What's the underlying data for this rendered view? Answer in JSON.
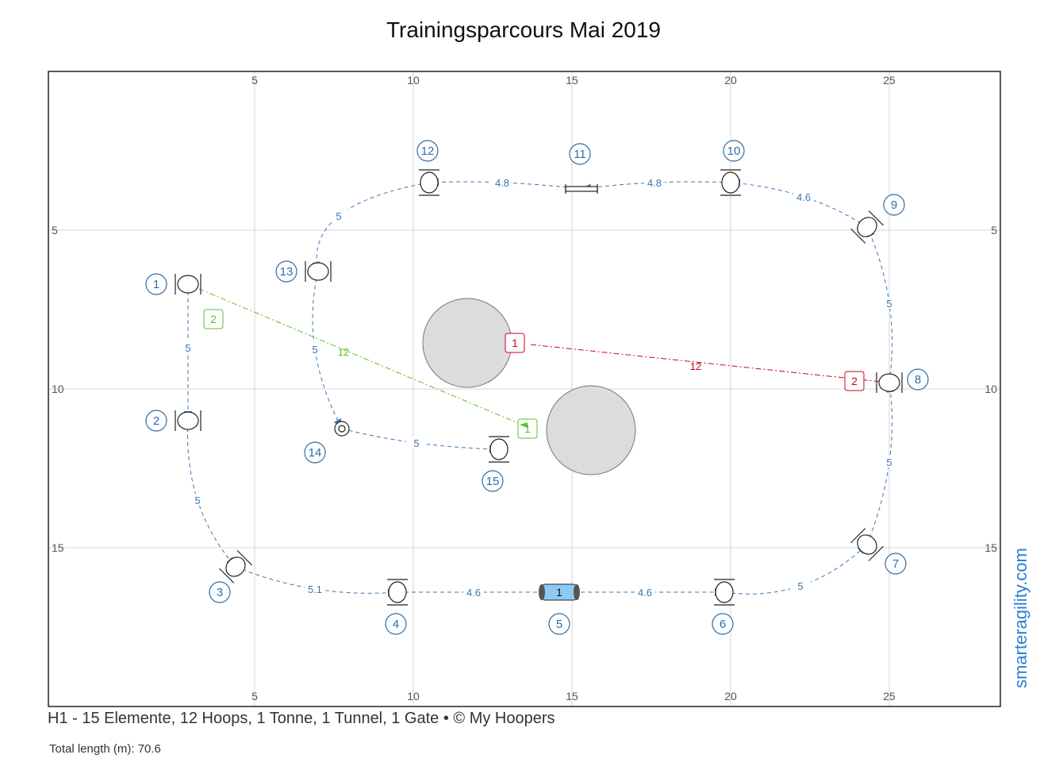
{
  "title": "Trainingsparcours Mai 2019",
  "subtitle": "H1 - 15 Elemente, 12 Hoops, 1 Tonne, 1 Tunnel, 1 Gate • © My Hoopers",
  "total_length": "Total length (m): 70.6",
  "brand": "smarteragility.com",
  "colors": {
    "path": "#3a78b5",
    "label": "#2d6ea8",
    "green": "#5cbf2a",
    "red": "#d0021b",
    "obstacle_fill": "#dcdcdc",
    "tunnel_fill": "#8ec9f5",
    "grid": "#d6d6d6"
  },
  "chart_data": {
    "type": "course-map",
    "xlim": [
      -1.5,
      28.5
    ],
    "ylim": [
      0,
      20
    ],
    "x_ticks": [
      "5",
      "10",
      "15",
      "20",
      "25"
    ],
    "y_ticks": [
      "5",
      "10",
      "15"
    ],
    "grid": true,
    "elements": [
      {
        "num": "1",
        "type": "hoop",
        "x": 2.9,
        "y": 6.7,
        "rot": 0
      },
      {
        "num": "2",
        "type": "hoop",
        "x": 2.9,
        "y": 11.0,
        "rot": 0
      },
      {
        "num": "3",
        "type": "hoop",
        "x": 4.4,
        "y": 15.6,
        "rot": -45
      },
      {
        "num": "4",
        "type": "hoop",
        "x": 9.5,
        "y": 16.4,
        "rot": 90
      },
      {
        "num": "5",
        "type": "tunnel",
        "x": 14.6,
        "y": 16.4,
        "rot": 0,
        "text": "1"
      },
      {
        "num": "6",
        "type": "hoop",
        "x": 19.8,
        "y": 16.4,
        "rot": 90
      },
      {
        "num": "7",
        "type": "hoop",
        "x": 24.3,
        "y": 14.9,
        "rot": 45
      },
      {
        "num": "8",
        "type": "hoop",
        "x": 25.0,
        "y": 9.8,
        "rot": 0
      },
      {
        "num": "9",
        "type": "hoop",
        "x": 24.3,
        "y": 4.9,
        "rot": -45
      },
      {
        "num": "10",
        "type": "hoop",
        "x": 20.0,
        "y": 3.5,
        "rot": 90
      },
      {
        "num": "11",
        "type": "gate",
        "x": 15.3,
        "y": 3.7,
        "rot": 0
      },
      {
        "num": "12",
        "type": "hoop",
        "x": 10.5,
        "y": 3.5,
        "rot": 90
      },
      {
        "num": "13",
        "type": "hoop",
        "x": 7.0,
        "y": 6.3,
        "rot": 0
      },
      {
        "num": "14",
        "type": "barrel",
        "x": 7.75,
        "y": 11.25,
        "rot": 0
      },
      {
        "num": "15",
        "type": "hoop",
        "x": 12.7,
        "y": 11.9,
        "rot": 90
      }
    ],
    "number_labels": [
      {
        "text": "1",
        "x": 1.9,
        "y": 6.7
      },
      {
        "text": "2",
        "x": 1.9,
        "y": 11.0
      },
      {
        "text": "3",
        "x": 3.9,
        "y": 16.4
      },
      {
        "text": "4",
        "x": 9.45,
        "y": 17.4
      },
      {
        "text": "5",
        "x": 14.6,
        "y": 17.4
      },
      {
        "text": "6",
        "x": 19.75,
        "y": 17.4
      },
      {
        "text": "7",
        "x": 25.2,
        "y": 15.5
      },
      {
        "text": "8",
        "x": 25.9,
        "y": 9.7
      },
      {
        "text": "9",
        "x": 25.15,
        "y": 4.2
      },
      {
        "text": "10",
        "x": 20.1,
        "y": 2.5
      },
      {
        "text": "11",
        "x": 15.25,
        "y": 2.6
      },
      {
        "text": "12",
        "x": 10.45,
        "y": 2.5
      },
      {
        "text": "13",
        "x": 6.0,
        "y": 6.3
      },
      {
        "text": "14",
        "x": 6.9,
        "y": 12.0
      },
      {
        "text": "15",
        "x": 12.5,
        "y": 12.9
      }
    ],
    "path_segments": [
      {
        "label": "5",
        "from": 1,
        "to": 2,
        "lx": 2.9,
        "ly": 8.7
      },
      {
        "label": "5",
        "from": 2,
        "to": 3,
        "lx": 3.2,
        "ly": 13.5
      },
      {
        "label": "5.1",
        "from": 3,
        "to": 4,
        "lx": 6.9,
        "ly": 16.3
      },
      {
        "label": "4.6",
        "from": 4,
        "to": 5,
        "lx": 11.9,
        "ly": 16.4
      },
      {
        "label": "4.6",
        "from": 5,
        "to": 6,
        "lx": 17.3,
        "ly": 16.4
      },
      {
        "label": "5",
        "from": 6,
        "to": 7,
        "lx": 22.2,
        "ly": 16.2
      },
      {
        "label": "5",
        "from": 7,
        "to": 8,
        "lx": 25.0,
        "ly": 12.3
      },
      {
        "label": "5",
        "from": 8,
        "to": 9,
        "lx": 25.0,
        "ly": 7.3
      },
      {
        "label": "4.6",
        "from": 9,
        "to": 10,
        "lx": 22.3,
        "ly": 3.95
      },
      {
        "label": "4.8",
        "from": 10,
        "to": 11,
        "lx": 17.6,
        "ly": 3.5
      },
      {
        "label": "4.8",
        "from": 11,
        "to": 12,
        "lx": 12.8,
        "ly": 3.5
      },
      {
        "label": "5",
        "from": 12,
        "to": 13,
        "lx": 7.65,
        "ly": 4.55
      },
      {
        "label": "5",
        "from": 13,
        "to": 14,
        "lx": 6.9,
        "ly": 8.75
      },
      {
        "label": "5",
        "from": 14,
        "to": 15,
        "lx": 10.1,
        "ly": 11.7
      }
    ],
    "distance_lines": [
      {
        "color": "green",
        "label": "12",
        "start_tag": "2",
        "end_tag": "1",
        "sx": 2.9,
        "sy": 6.7,
        "ex": 13.6,
        "ey": 11.2,
        "tag_start": [
          3.7,
          7.8
        ],
        "tag_end": [
          13.6,
          11.25
        ],
        "lx": 7.8,
        "ly": 8.85
      },
      {
        "color": "red",
        "label": "12",
        "start_tag": "1",
        "end_tag": "2",
        "sx": 13.7,
        "sy": 8.6,
        "ex": 25.0,
        "ey": 9.8,
        "tag_start": [
          13.2,
          8.55
        ],
        "tag_end": [
          23.9,
          9.75
        ],
        "lx": 18.9,
        "ly": 9.3
      }
    ],
    "obstacles": [
      {
        "type": "circle",
        "x": 11.7,
        "y": 8.55,
        "r": 1.4
      },
      {
        "type": "circle",
        "x": 15.6,
        "y": 11.3,
        "r": 1.4
      }
    ]
  }
}
